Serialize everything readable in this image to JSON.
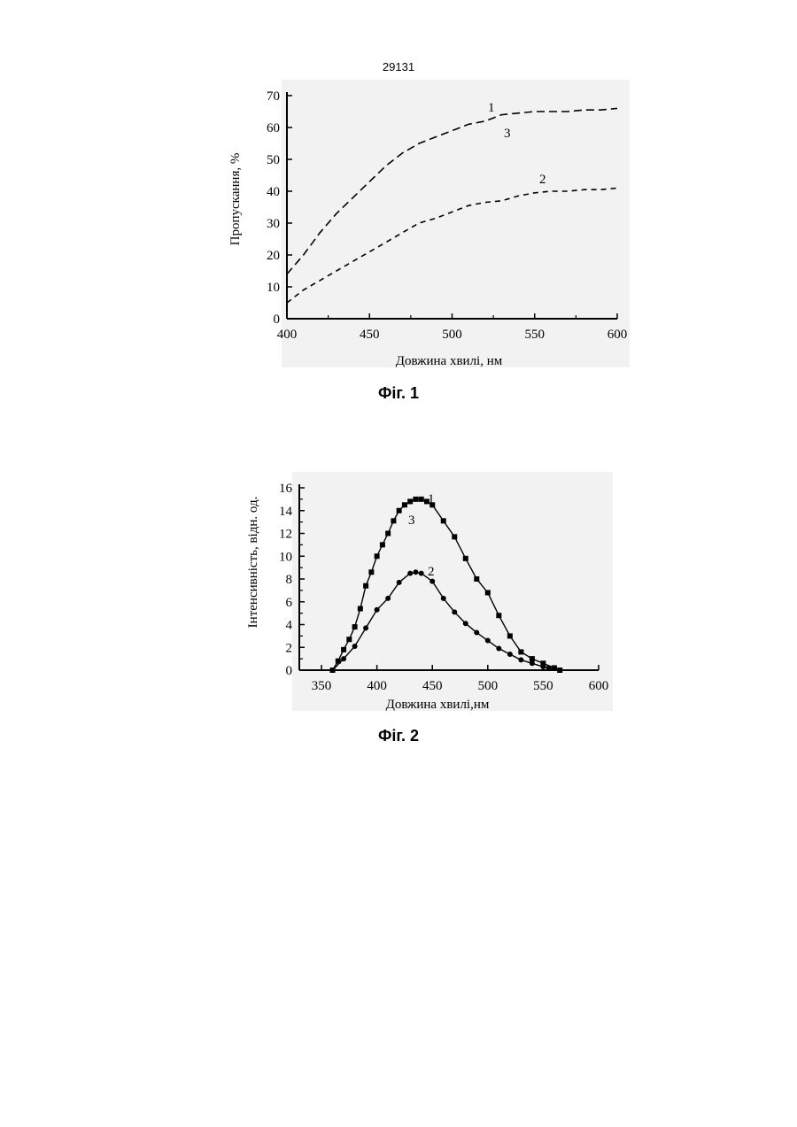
{
  "page": {
    "number": "29131"
  },
  "chart_data": [
    {
      "type": "line",
      "caption": "Фіг. 1",
      "xlabel": "Довжина хвилі, нм",
      "ylabel": "Пропускання, %",
      "xlim": [
        400,
        600
      ],
      "ylim": [
        0,
        70
      ],
      "xticks": [
        400,
        450,
        500,
        550,
        600
      ],
      "yticks": [
        0,
        10,
        20,
        30,
        40,
        50,
        60,
        70
      ],
      "grid": false,
      "line_style": "dashed",
      "series": [
        {
          "name": "1",
          "label_near": "1",
          "x": [
            400,
            410,
            420,
            430,
            440,
            450,
            460,
            470,
            480,
            490,
            500,
            510,
            520,
            530,
            540,
            550,
            560,
            570,
            580,
            590,
            600
          ],
          "values": [
            14,
            20,
            27,
            33,
            38,
            43,
            48,
            52,
            55,
            57,
            59,
            61,
            62,
            64,
            64.5,
            65,
            65,
            65,
            65.5,
            65.5,
            66
          ]
        },
        {
          "name": "3",
          "label_near": "3",
          "x": [
            400,
            410,
            420,
            430,
            440,
            450,
            460,
            470,
            480,
            490,
            500,
            510,
            520,
            530,
            540,
            550,
            560,
            570,
            580,
            590,
            600
          ],
          "values": [
            14,
            20,
            27,
            33,
            38,
            43,
            48,
            52,
            55,
            57,
            59,
            61,
            62,
            64,
            64.5,
            65,
            65,
            65,
            65.5,
            65.5,
            66
          ]
        },
        {
          "name": "2",
          "label_near": "2",
          "x": [
            400,
            410,
            420,
            430,
            440,
            450,
            460,
            470,
            480,
            490,
            500,
            510,
            520,
            530,
            540,
            550,
            560,
            570,
            580,
            590,
            600
          ],
          "values": [
            5,
            9,
            12,
            15,
            18,
            21,
            24,
            27,
            30,
            31.5,
            33.5,
            35.5,
            36.5,
            37,
            38.5,
            39.5,
            40,
            40,
            40.5,
            40.5,
            41
          ]
        }
      ]
    },
    {
      "type": "line",
      "caption": "Фіг. 2",
      "xlabel": "Довжина хвилі,нм",
      "ylabel": "Інтенсивність, відн. од.",
      "xlim": [
        330,
        600
      ],
      "ylim": [
        0,
        16
      ],
      "xticks": [
        350,
        400,
        450,
        500,
        550,
        600
      ],
      "yticks": [
        0,
        2,
        4,
        6,
        8,
        10,
        12,
        14,
        16
      ],
      "grid": false,
      "series": [
        {
          "name": "1",
          "marker": "square",
          "x": [
            360,
            365,
            370,
            375,
            380,
            385,
            390,
            395,
            400,
            405,
            410,
            415,
            420,
            425,
            430,
            435,
            440,
            445,
            450,
            460,
            470,
            480,
            490,
            500,
            510,
            520,
            530,
            540,
            550,
            560,
            565
          ],
          "values": [
            0,
            0.8,
            1.8,
            2.7,
            3.8,
            5.4,
            7.4,
            8.6,
            10.0,
            11.0,
            12.0,
            13.1,
            14.0,
            14.5,
            14.8,
            15.0,
            15.0,
            14.8,
            14.5,
            13.1,
            11.7,
            9.8,
            8.0,
            6.8,
            4.8,
            3.0,
            1.6,
            1.0,
            0.6,
            0.2,
            0
          ]
        },
        {
          "name": "3",
          "marker": "square",
          "x": [
            360,
            365,
            370,
            375,
            380,
            385,
            390,
            395,
            400,
            405,
            410,
            415,
            420,
            425,
            430,
            435,
            440,
            445,
            450,
            460,
            470,
            480,
            490,
            500,
            510,
            520,
            530,
            540,
            550,
            560,
            565
          ],
          "values": [
            0,
            0.8,
            1.8,
            2.7,
            3.8,
            5.4,
            7.4,
            8.6,
            10.0,
            11.0,
            12.0,
            13.1,
            14.0,
            14.5,
            14.8,
            15.0,
            15.0,
            14.8,
            14.5,
            13.1,
            11.7,
            9.8,
            8.0,
            6.8,
            4.8,
            3.0,
            1.6,
            1.0,
            0.6,
            0.2,
            0
          ]
        },
        {
          "name": "2",
          "marker": "circle",
          "x": [
            360,
            370,
            380,
            390,
            400,
            410,
            420,
            430,
            435,
            440,
            450,
            460,
            470,
            480,
            490,
            500,
            510,
            520,
            530,
            540,
            550,
            555,
            565
          ],
          "values": [
            0,
            1.0,
            2.1,
            3.7,
            5.3,
            6.3,
            7.7,
            8.5,
            8.6,
            8.5,
            7.8,
            6.3,
            5.1,
            4.1,
            3.3,
            2.6,
            1.9,
            1.4,
            0.9,
            0.6,
            0.3,
            0.2,
            0
          ]
        }
      ]
    }
  ]
}
